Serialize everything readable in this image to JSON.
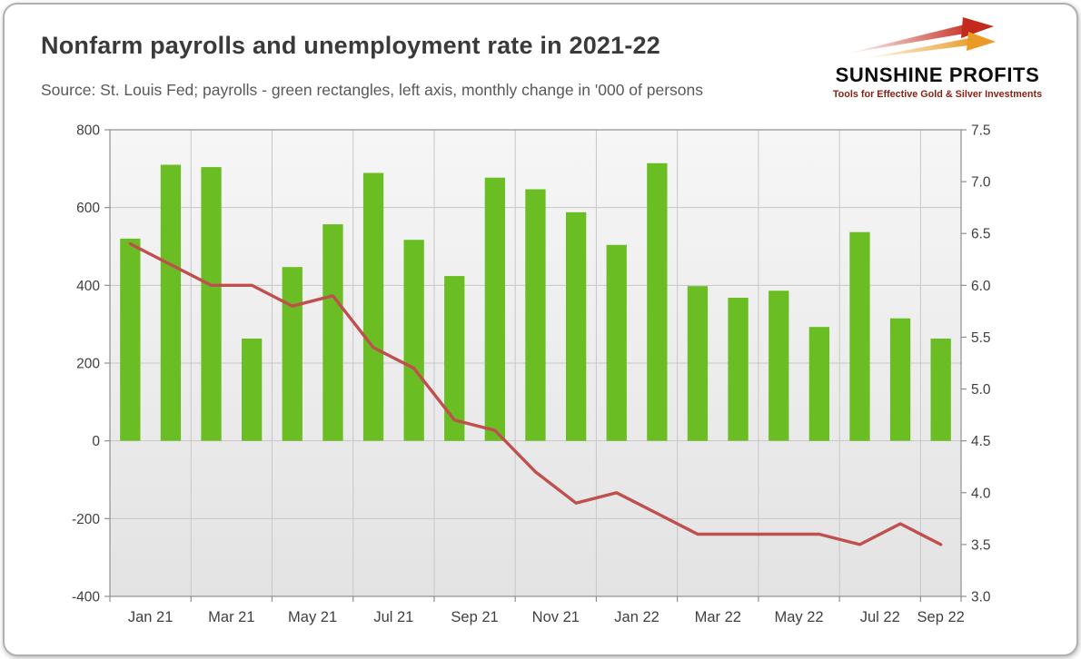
{
  "header": {
    "title": "Nonfarm payrolls and unemployment rate in 2021-22",
    "subtitle": "Source: St. Louis Fed; payrolls - green rectangles, left axis, monthly change in '000 of persons"
  },
  "logo": {
    "title": "SUNSHINE PROFITS",
    "tagline": "Tools for Effective Gold & Silver Investments",
    "brand_red": "#c42a1c",
    "brand_orange": "#e99b26",
    "tagline_color": "#8a1f12"
  },
  "chart_data": {
    "type": "combo",
    "title": "Nonfarm payrolls and unemployment rate in 2021-22",
    "categories": [
      "Jan 21",
      "Feb 21",
      "Mar 21",
      "Apr 21",
      "May 21",
      "Jun 21",
      "Jul 21",
      "Aug 21",
      "Sep 21",
      "Oct 21",
      "Nov 21",
      "Dec 21",
      "Jan 22",
      "Feb 22",
      "Mar 22",
      "Apr 22",
      "May 22",
      "Jun 22",
      "Jul 22",
      "Aug 22",
      "Sep 22"
    ],
    "x_tick_labels": [
      "Jan 21",
      "Mar 21",
      "May 21",
      "Jul 21",
      "Sep 21",
      "Nov 21",
      "Jan 22",
      "Mar 22",
      "May 22",
      "Jul 22",
      "Sep 22"
    ],
    "series": [
      {
        "name": "Nonfarm payrolls, monthly change in '000 of persons",
        "type": "bar",
        "axis": "left",
        "color": "#6abd23",
        "values": [
          520,
          710,
          704,
          263,
          447,
          557,
          689,
          517,
          424,
          677,
          647,
          588,
          504,
          714,
          398,
          368,
          386,
          293,
          537,
          315,
          263
        ]
      },
      {
        "name": "Unemployment rate, %",
        "type": "line",
        "axis": "right",
        "color": "#c0504d",
        "values": [
          6.4,
          6.2,
          6.0,
          6.0,
          5.8,
          5.9,
          5.4,
          5.2,
          4.7,
          4.6,
          4.2,
          3.9,
          4.0,
          3.8,
          3.6,
          3.6,
          3.6,
          3.6,
          3.5,
          3.7,
          3.5
        ]
      }
    ],
    "left_axis": {
      "min": -400,
      "max": 800,
      "step": 200,
      "tick_labels": [
        "800",
        "600",
        "400",
        "200",
        "0",
        "-200",
        "-400"
      ]
    },
    "right_axis": {
      "min": 3.0,
      "max": 7.5,
      "step": 0.5,
      "tick_labels": [
        "7.5",
        "7.0",
        "6.5",
        "6.0",
        "5.5",
        "5.0",
        "4.5",
        "4.0",
        "3.5",
        "3.0"
      ]
    },
    "grid": true,
    "legend": "none",
    "plot_background": "#ededed"
  }
}
